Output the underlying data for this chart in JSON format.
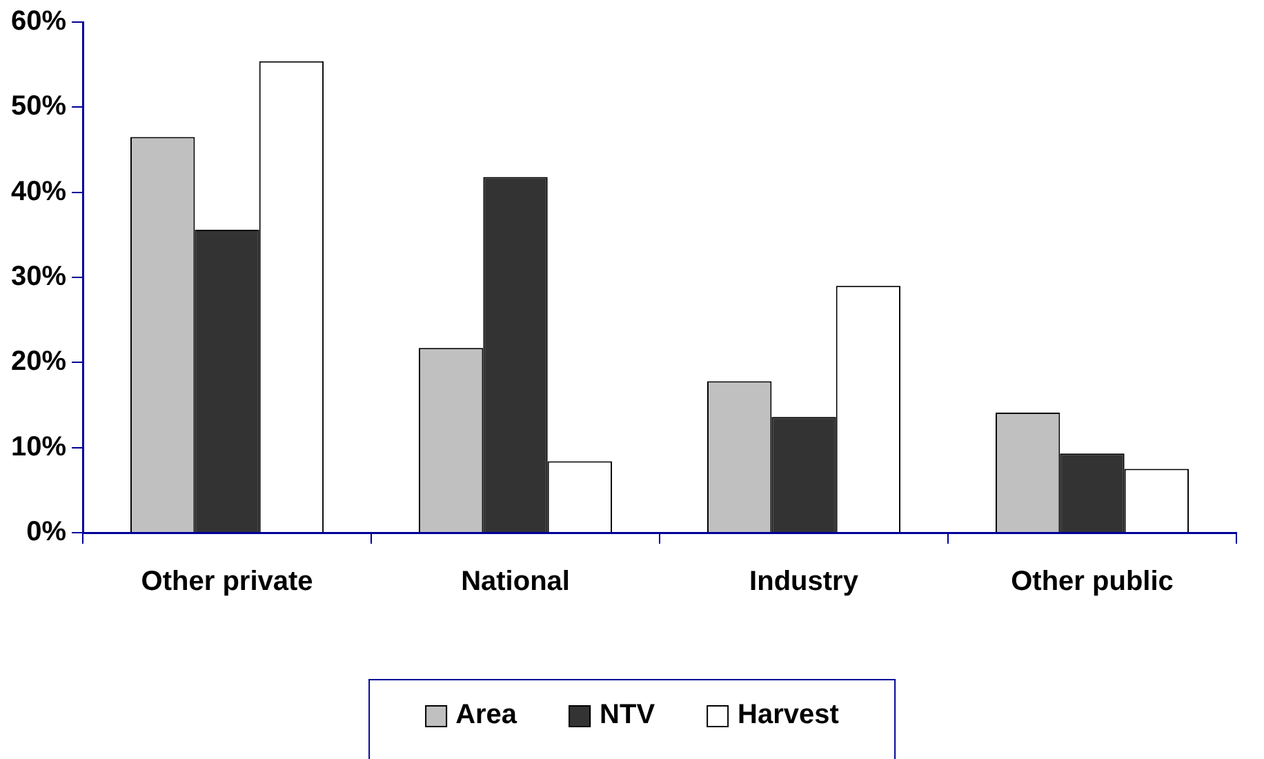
{
  "chart_data": {
    "type": "bar",
    "categories": [
      "Other private",
      "National",
      "Industry",
      "Other public"
    ],
    "series": [
      {
        "name": "Area",
        "color": "#c0c0c0",
        "values": [
          46.5,
          21.7,
          17.8,
          14.1
        ]
      },
      {
        "name": "NTV",
        "color": "#333333",
        "values": [
          35.6,
          41.8,
          13.6,
          9.3
        ]
      },
      {
        "name": "Harvest",
        "color": "#ffffff",
        "values": [
          55.4,
          8.4,
          29.0,
          7.5
        ]
      }
    ],
    "ylim": [
      0,
      60
    ],
    "yticks": [
      {
        "value": 0,
        "label": "0%"
      },
      {
        "value": 10,
        "label": "10%"
      },
      {
        "value": 20,
        "label": "20%"
      },
      {
        "value": 30,
        "label": "30%"
      },
      {
        "value": 40,
        "label": "40%"
      },
      {
        "value": 50,
        "label": "50%"
      },
      {
        "value": 60,
        "label": "60%"
      }
    ],
    "grid": false,
    "legend": "bottom"
  }
}
